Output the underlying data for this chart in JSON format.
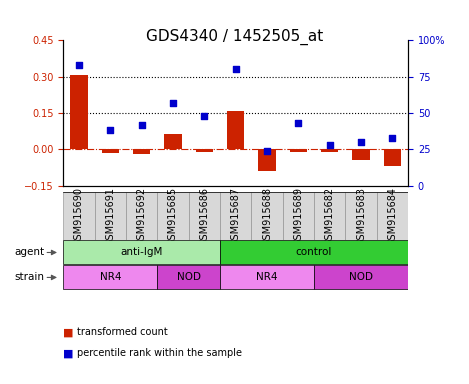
{
  "title": "GDS4340 / 1452505_at",
  "samples": [
    "GSM915690",
    "GSM915691",
    "GSM915692",
    "GSM915685",
    "GSM915686",
    "GSM915687",
    "GSM915688",
    "GSM915689",
    "GSM915682",
    "GSM915683",
    "GSM915684"
  ],
  "transformed_count": [
    0.305,
    -0.015,
    -0.02,
    0.065,
    -0.01,
    0.16,
    -0.09,
    -0.01,
    -0.01,
    -0.045,
    -0.07
  ],
  "percentile_rank": [
    83,
    38,
    42,
    57,
    48,
    80,
    24,
    43,
    28,
    30,
    33
  ],
  "ylim_left": [
    -0.15,
    0.45
  ],
  "ylim_right": [
    0,
    100
  ],
  "yticks_left": [
    -0.15,
    0.0,
    0.15,
    0.3,
    0.45
  ],
  "yticks_right": [
    0,
    25,
    50,
    75,
    100
  ],
  "hlines": [
    0.15,
    0.3
  ],
  "bar_color": "#cc2200",
  "dot_color": "#0000cc",
  "zero_line_color": "#cc2200",
  "hline_color": "#000000",
  "agent_groups": [
    {
      "label": "anti-IgM",
      "start": 0,
      "end": 5,
      "color": "#aaeaaa"
    },
    {
      "label": "control",
      "start": 5,
      "end": 11,
      "color": "#33cc33"
    }
  ],
  "strain_groups": [
    {
      "label": "NR4",
      "start": 0,
      "end": 3,
      "color": "#ee88ee"
    },
    {
      "label": "NOD",
      "start": 3,
      "end": 5,
      "color": "#cc44cc"
    },
    {
      "label": "NR4",
      "start": 5,
      "end": 8,
      "color": "#ee88ee"
    },
    {
      "label": "NOD",
      "start": 8,
      "end": 11,
      "color": "#cc44cc"
    }
  ],
  "legend_items": [
    {
      "label": "transformed count",
      "color": "#cc2200"
    },
    {
      "label": "percentile rank within the sample",
      "color": "#0000cc"
    }
  ],
  "tick_label_fontsize": 7,
  "title_fontsize": 11,
  "axis_color_left": "#cc2200",
  "axis_color_right": "#0000cc",
  "tick_bg_color": "#d8d8d8",
  "tick_bg_edge": "#888888"
}
